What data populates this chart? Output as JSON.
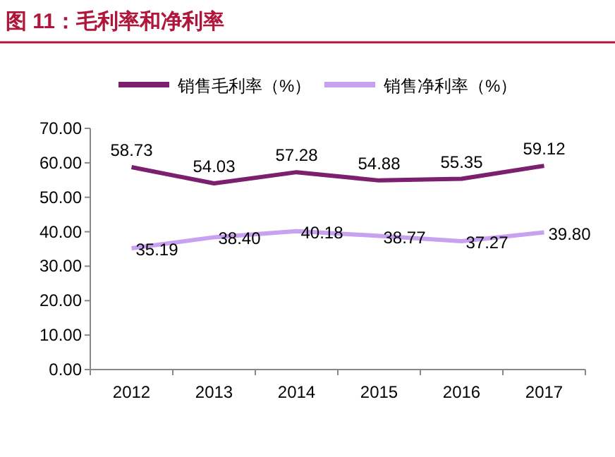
{
  "chart_data": {
    "type": "line",
    "title": "图 11：毛利率和净利率",
    "categories": [
      "2012",
      "2013",
      "2014",
      "2015",
      "2016",
      "2017"
    ],
    "series": [
      {
        "name": "销售毛利率（%）",
        "color": "#7b1f6e",
        "values": [
          58.73,
          54.03,
          57.28,
          54.88,
          55.35,
          59.12
        ],
        "value_labels": [
          "58.73",
          "54.03",
          "57.28",
          "54.88",
          "55.35",
          "59.12"
        ]
      },
      {
        "name": "销售净利率（%）",
        "color": "#c8a2f0",
        "values": [
          35.19,
          38.4,
          40.18,
          38.77,
          37.27,
          39.8
        ],
        "value_labels": [
          "35.19",
          "38.40",
          "40.18",
          "38.77",
          "37.27",
          "39.80"
        ]
      }
    ],
    "ylim": [
      0,
      70
    ],
    "yticks": [
      {
        "value": 0,
        "label": "0.00"
      },
      {
        "value": 10,
        "label": "10.00"
      },
      {
        "value": 20,
        "label": "20.00"
      },
      {
        "value": 30,
        "label": "30.00"
      },
      {
        "value": 40,
        "label": "40.00"
      },
      {
        "value": 50,
        "label": "50.00"
      },
      {
        "value": 60,
        "label": "60.00"
      },
      {
        "value": 70,
        "label": "70.00"
      }
    ],
    "legend": "top"
  }
}
